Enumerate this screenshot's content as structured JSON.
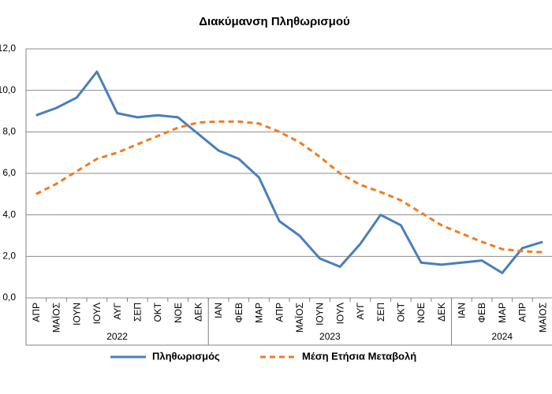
{
  "chart_data": {
    "type": "line",
    "title": "Διακύμανση Πληθωρισμού",
    "category_groups": [
      {
        "name": "2022",
        "categories": [
          "ΑΠΡ",
          "ΜΑΪΟΣ",
          "ΙΟΥΝ",
          "ΙΟΥΛ",
          "ΑΥΓ",
          "ΣΕΠ",
          "ΟΚΤ",
          "ΝΟΕ",
          "ΔΕΚ"
        ]
      },
      {
        "name": "2023",
        "categories": [
          "ΙΑΝ",
          "ΦΕΒ",
          "ΜΑΡ",
          "ΑΠΡ",
          "ΜΑΪΟΣ",
          "ΙΟΥΝ",
          "ΙΟΥΛ",
          "ΑΥΓ",
          "ΣΕΠ",
          "ΟΚΤ",
          "ΝΟΕ",
          "ΔΕΚ"
        ]
      },
      {
        "name": "2024",
        "categories": [
          "ΙΑΝ",
          "ΦΕΒ",
          "ΜΑΡ",
          "ΑΠΡ",
          "ΜΑΪΟΣ"
        ]
      }
    ],
    "series": [
      {
        "name": "Πληθωρισμός",
        "color": "#4a7ebb",
        "dash": false,
        "values": [
          8.8,
          9.15,
          9.65,
          10.9,
          8.9,
          8.7,
          8.8,
          8.7,
          7.9,
          7.1,
          6.7,
          5.8,
          3.7,
          3.0,
          1.9,
          1.5,
          2.6,
          4.0,
          3.5,
          1.7,
          1.6,
          1.7,
          1.8,
          1.2,
          2.4,
          2.7
        ]
      },
      {
        "name": "Μέση Ετήσια Μεταβολή",
        "color": "#f07c22",
        "dash": true,
        "values": [
          5.0,
          5.5,
          6.1,
          6.7,
          7.0,
          7.4,
          7.8,
          8.2,
          8.45,
          8.5,
          8.5,
          8.4,
          8.0,
          7.5,
          6.8,
          6.0,
          5.45,
          5.1,
          4.7,
          4.1,
          3.5,
          3.1,
          2.7,
          2.35,
          2.25,
          2.2
        ]
      }
    ],
    "ylim": [
      0,
      12
    ],
    "yticks": [
      {
        "value": 0,
        "label": "0,0"
      },
      {
        "value": 2,
        "label": "2,0"
      },
      {
        "value": 4,
        "label": "4,0"
      },
      {
        "value": 6,
        "label": "6,0"
      },
      {
        "value": 8,
        "label": "8,0"
      },
      {
        "value": 10,
        "label": "10,0"
      },
      {
        "value": 12,
        "label": "12,0"
      }
    ],
    "grid": true,
    "legend": "bottom"
  }
}
